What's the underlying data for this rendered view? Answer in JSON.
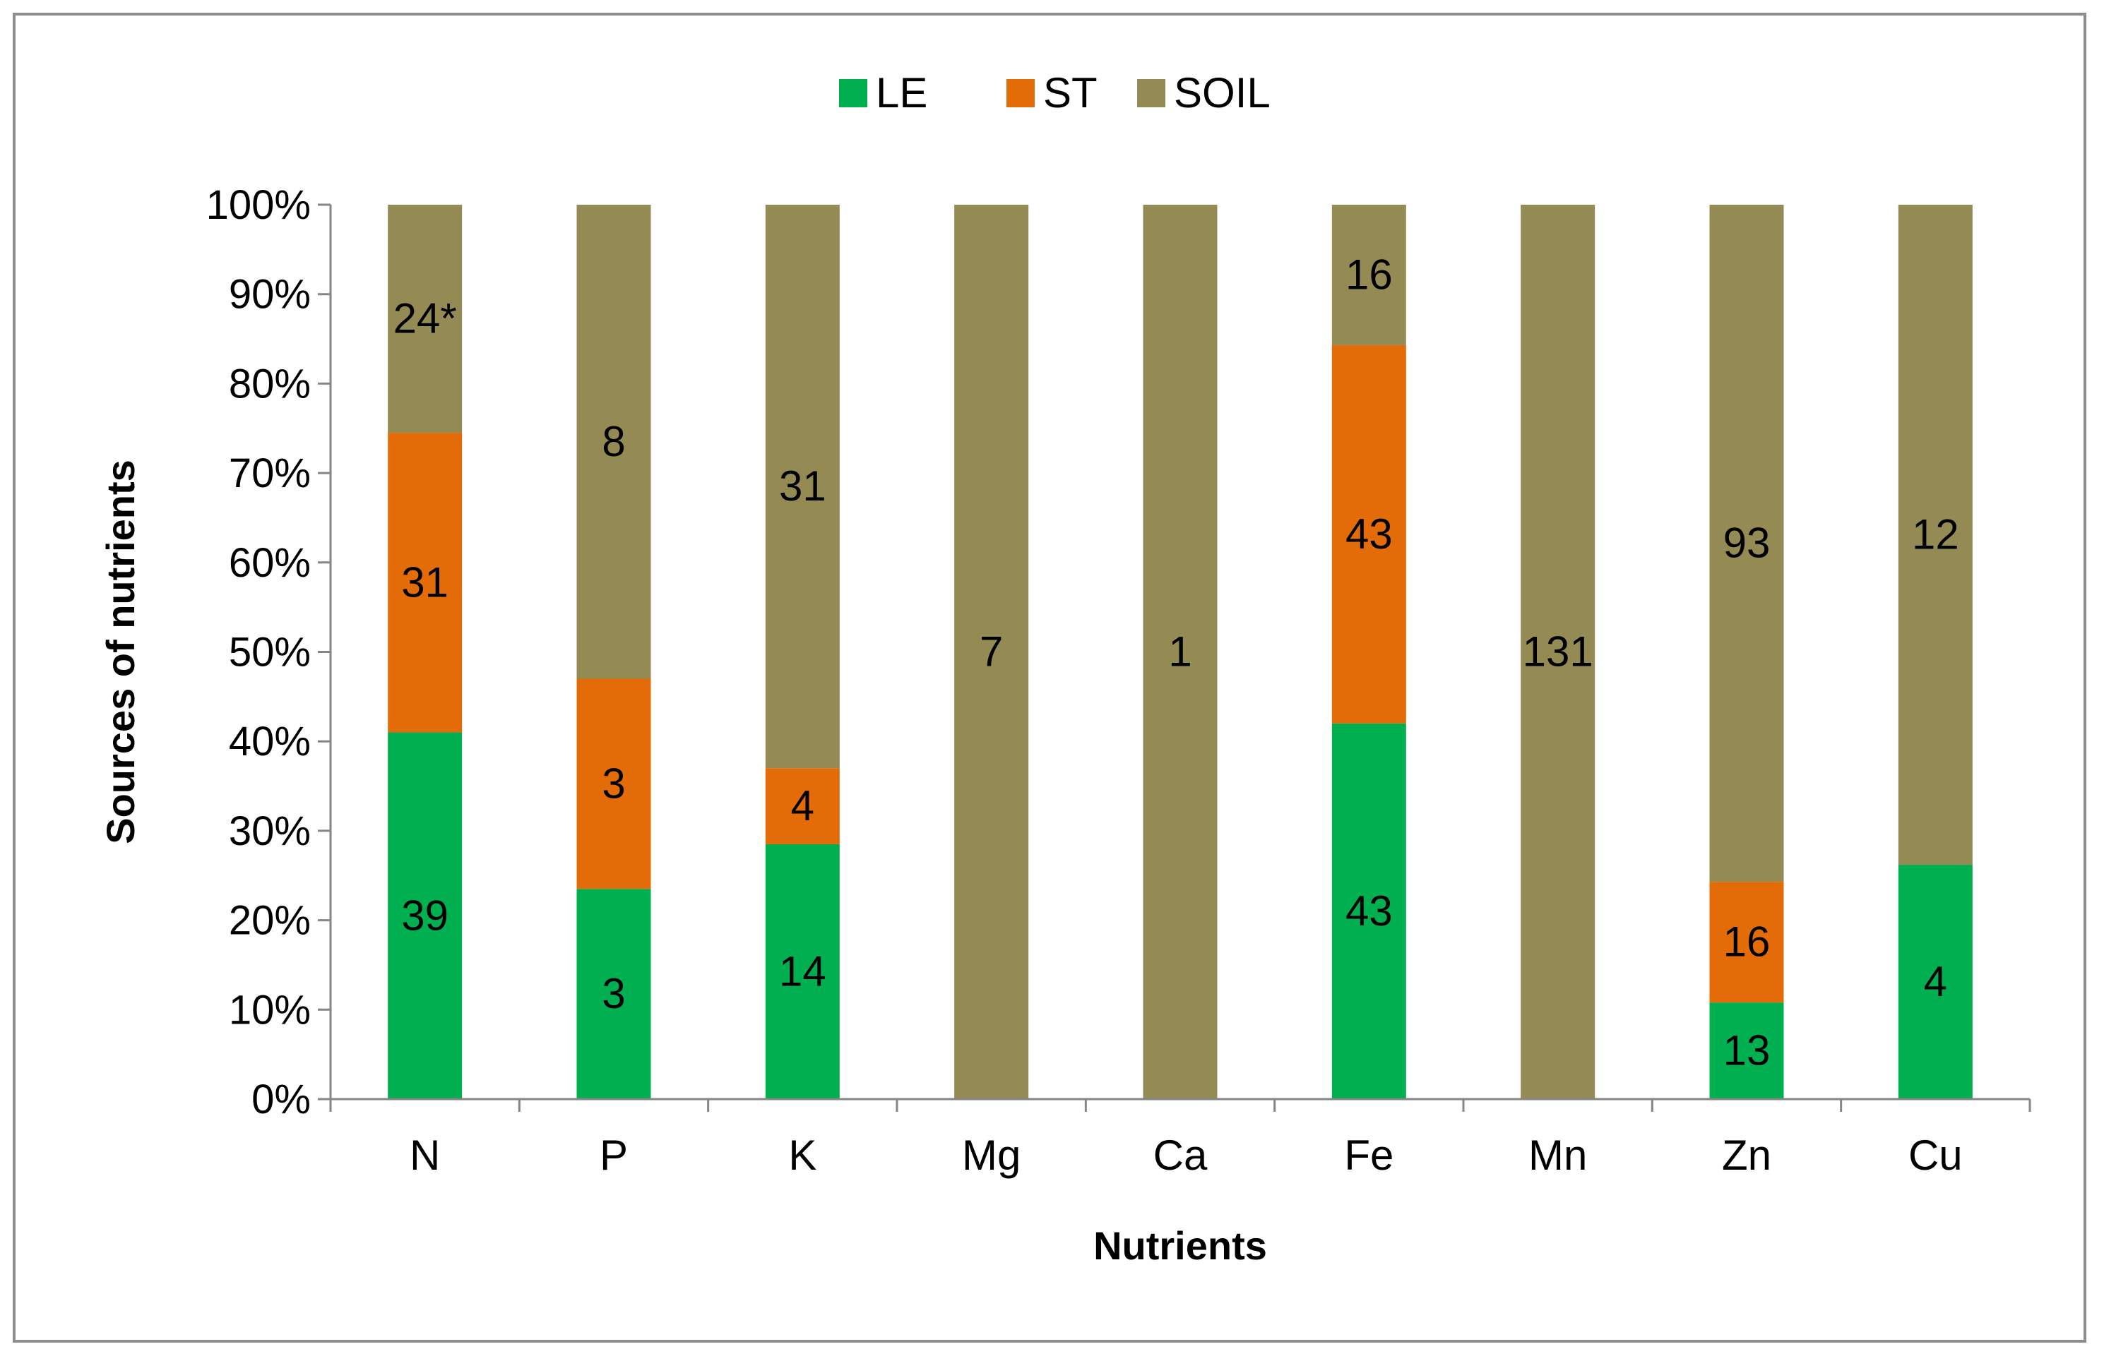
{
  "chart_data": {
    "type": "bar",
    "stacked": "percent",
    "title": "",
    "xlabel": "Nutrients",
    "ylabel": "Sources of nutrients",
    "ylim": [
      0,
      100
    ],
    "ytick_labels": [
      "0%",
      "10%",
      "20%",
      "30%",
      "40%",
      "50%",
      "60%",
      "70%",
      "80%",
      "90%",
      "100%"
    ],
    "legend_position": "top",
    "categories": [
      "N",
      "P",
      "K",
      "Mg",
      "Ca",
      "Fe",
      "Mn",
      "Zn",
      "Cu"
    ],
    "series": [
      {
        "name": "LE",
        "color": "#00b050",
        "shares_percent": [
          41,
          23.5,
          28.5,
          0,
          0,
          42,
          0,
          10.8,
          26.2
        ],
        "labels": [
          "39",
          "3",
          "14",
          "",
          "",
          "43",
          "",
          "13",
          "4"
        ]
      },
      {
        "name": "ST",
        "color": "#e36c09",
        "shares_percent": [
          33.5,
          23.5,
          8.5,
          0,
          0,
          42.3,
          0,
          13.5,
          0
        ],
        "labels": [
          "31",
          "3",
          "4",
          "",
          "",
          "43",
          "",
          "16",
          ""
        ]
      },
      {
        "name": "SOIL",
        "color": "#948a54",
        "shares_percent": [
          25.5,
          53,
          63,
          100,
          100,
          15.7,
          100,
          75.7,
          73.8
        ],
        "labels": [
          "24*",
          "8",
          "31",
          "7",
          "1",
          "16",
          "131",
          "93",
          "12"
        ]
      }
    ]
  }
}
